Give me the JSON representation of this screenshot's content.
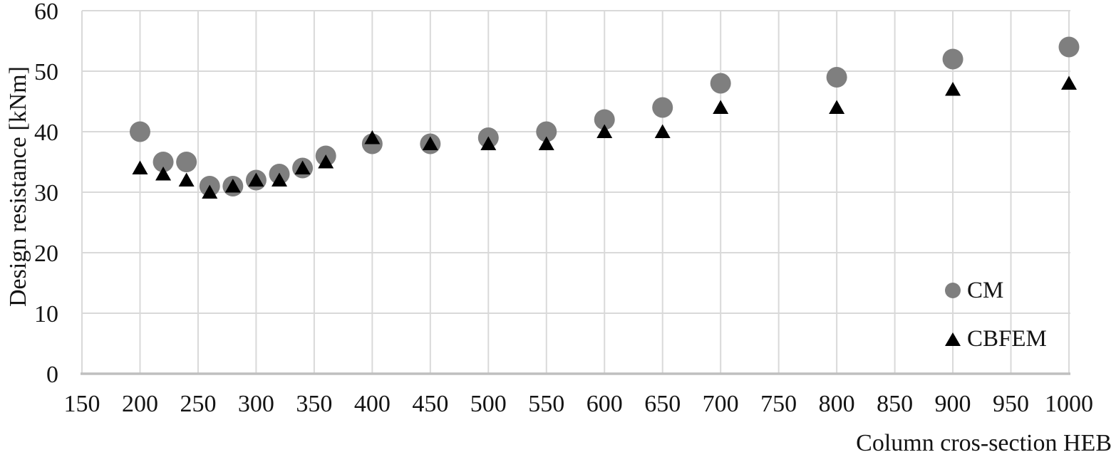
{
  "chart_data": {
    "type": "scatter",
    "title": "",
    "xlabel": "Column cros-section HEB",
    "ylabel": "Design resistance [kNm]",
    "x_range": [
      150,
      1000
    ],
    "y_range": [
      0,
      60
    ],
    "x_ticks": [
      150,
      200,
      250,
      300,
      350,
      400,
      450,
      500,
      550,
      600,
      650,
      700,
      750,
      800,
      850,
      900,
      950,
      1000
    ],
    "y_ticks": [
      0,
      10,
      20,
      30,
      40,
      50,
      60
    ],
    "grid": true,
    "legend_position": "inside-right-middle",
    "x": [
      200,
      220,
      240,
      260,
      280,
      300,
      320,
      340,
      360,
      400,
      450,
      500,
      550,
      600,
      650,
      700,
      800,
      900,
      1000
    ],
    "series": [
      {
        "name": "CM",
        "marker": "circle",
        "color": "#7F7F7F",
        "values": [
          40,
          35,
          35,
          31,
          31,
          32,
          33,
          34,
          36,
          38,
          38,
          39,
          40,
          42,
          44,
          48,
          49,
          52,
          54
        ]
      },
      {
        "name": "CBFEM",
        "marker": "triangle",
        "color": "#000000",
        "values": [
          34,
          33,
          32,
          30,
          31,
          32,
          32,
          34,
          35,
          39,
          38,
          38,
          38,
          40,
          40,
          44,
          44,
          47,
          48
        ]
      }
    ],
    "colors": {
      "grid": "#D9D9D9",
      "axis_line": "#BFBFBF",
      "text": "#141414",
      "background": "#FFFFFF"
    }
  }
}
